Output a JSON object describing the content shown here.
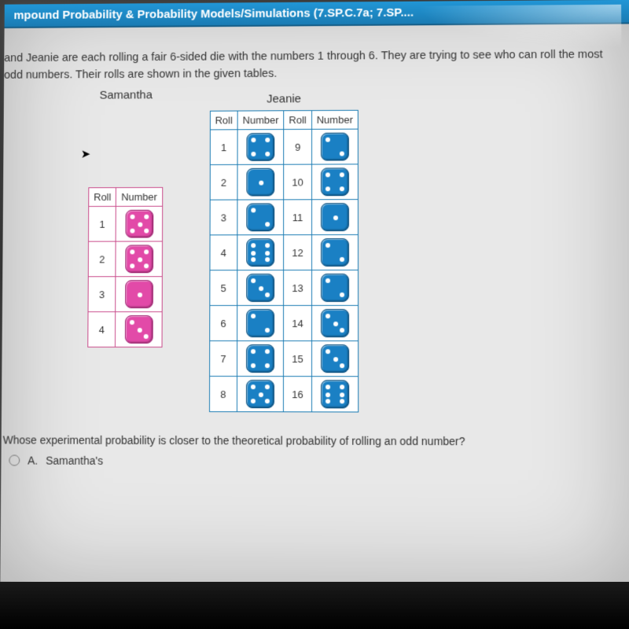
{
  "header": {
    "title": "mpound Probability & Probability Models/Simulations (7.SP.C.7a; 7.SP...."
  },
  "question": {
    "line1": "and Jeanie are each rolling a fair 6-sided die with the numbers 1 through 6. They are trying to see who can roll the most",
    "line2": "odd numbers. Their rolls are shown in the given tables."
  },
  "players": {
    "samantha_label": "Samantha",
    "jeanie_label": "Jeanie"
  },
  "table_headers": {
    "roll": "Roll",
    "number": "Number"
  },
  "samantha": {
    "color": "pink",
    "rolls": [
      {
        "n": "1",
        "pips": 5
      },
      {
        "n": "2",
        "pips": 5
      },
      {
        "n": "3",
        "pips": 1
      },
      {
        "n": "4",
        "pips": 3
      }
    ]
  },
  "jeanie": {
    "color": "blue",
    "left": [
      {
        "n": "1",
        "pips": 4
      },
      {
        "n": "2",
        "pips": 1
      },
      {
        "n": "3",
        "pips": 2
      },
      {
        "n": "4",
        "pips": 6
      },
      {
        "n": "5",
        "pips": 3
      },
      {
        "n": "6",
        "pips": 2
      },
      {
        "n": "7",
        "pips": 4
      },
      {
        "n": "8",
        "pips": 5
      }
    ],
    "right": [
      {
        "n": "9",
        "pips": 2
      },
      {
        "n": "10",
        "pips": 4
      },
      {
        "n": "11",
        "pips": 1
      },
      {
        "n": "12",
        "pips": 2
      },
      {
        "n": "13",
        "pips": 2
      },
      {
        "n": "14",
        "pips": 3
      },
      {
        "n": "15",
        "pips": 3
      },
      {
        "n": "16",
        "pips": 6
      }
    ]
  },
  "follow_question": "Whose experimental probability is closer to the theoretical probability of rolling an odd number?",
  "answers": {
    "a_label": "A.",
    "a_text": "Samantha's"
  },
  "style": {
    "header_bg_top": "#2196d6",
    "header_bg_bottom": "#1a7bb3",
    "jeanie_border": "#1a7bb3",
    "samantha_border": "#c94a8a",
    "die_pink": "#e24aa8",
    "die_blue": "#1a80c4",
    "page_bg": "#e8e8e8"
  }
}
